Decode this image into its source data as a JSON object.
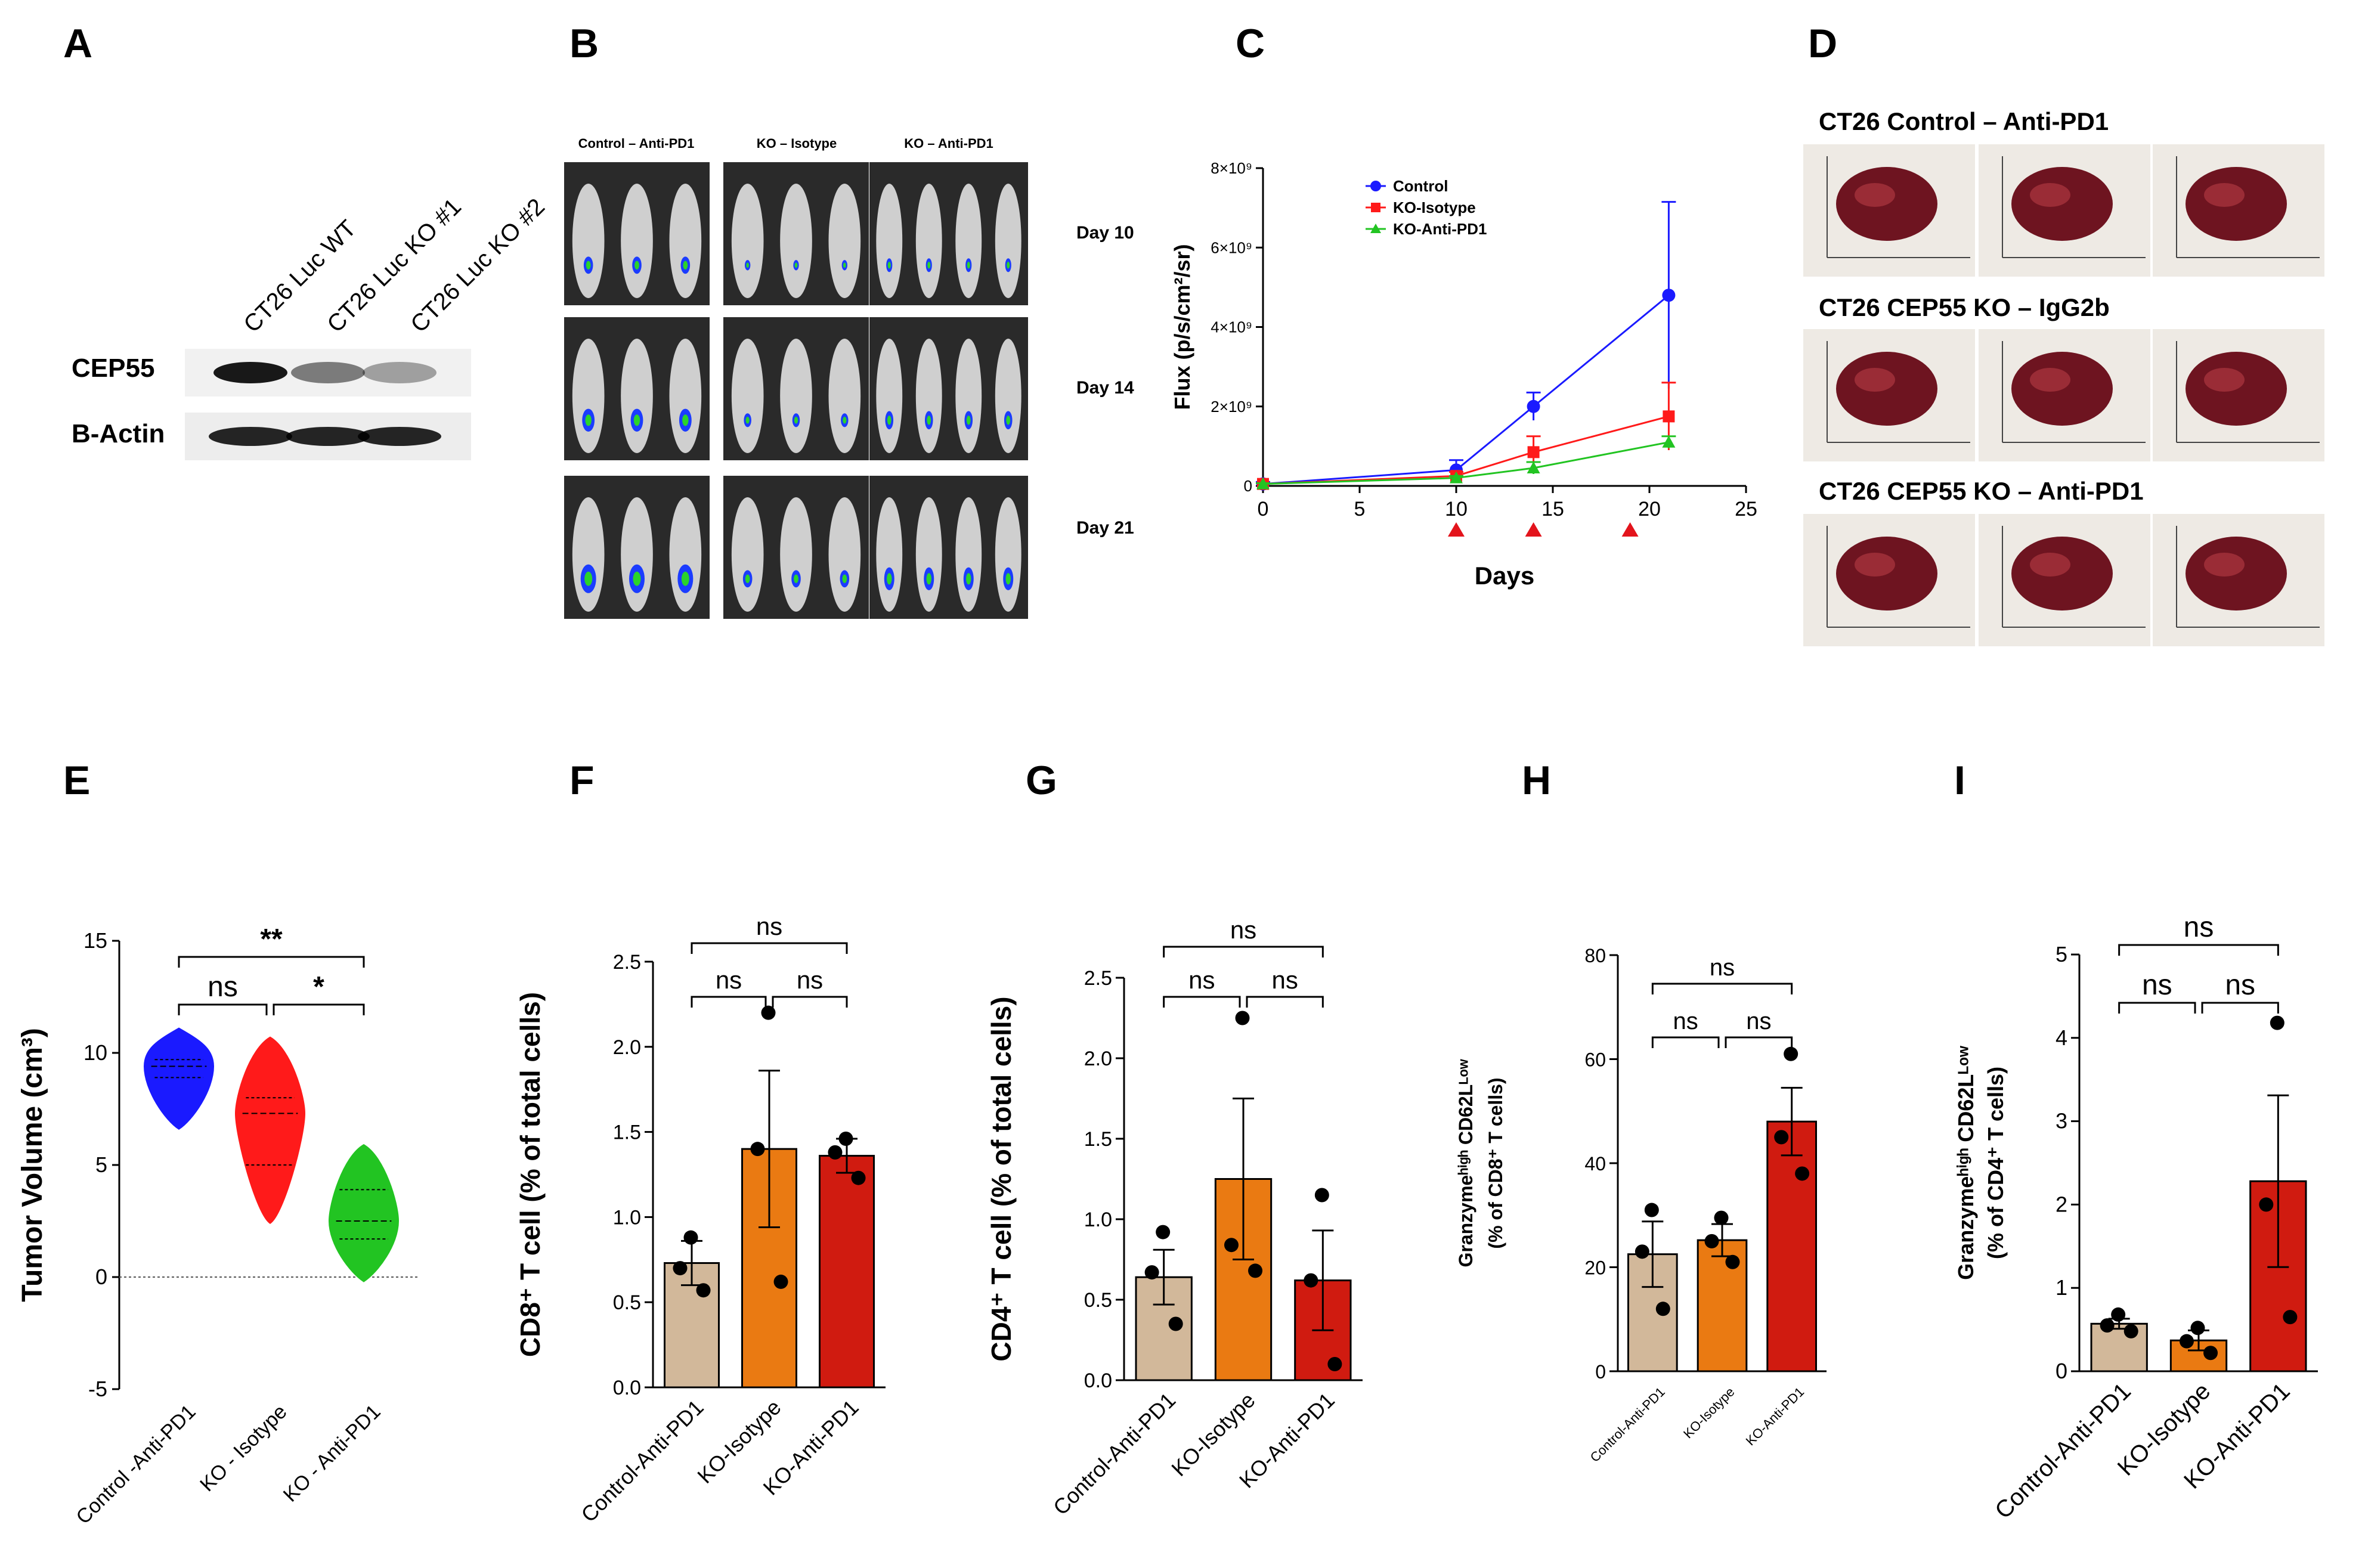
{
  "panels": {
    "A": {
      "letter": "A",
      "lanes": [
        "CT26 Luc WT",
        "CT26 Luc KO #1",
        "CT26 Luc KO #2"
      ],
      "bands": [
        "CEP55",
        "B-Actin"
      ],
      "cep55_relative_intensity": [
        1.0,
        0.45,
        0.25
      ],
      "actin_relative_intensity": [
        1.0,
        1.0,
        1.0
      ]
    },
    "B": {
      "letter": "B",
      "groups": [
        "Control – Anti-PD1",
        "KO – Isotype",
        "KO – Anti-PD1"
      ],
      "days": [
        "Day 10",
        "Day 14",
        "Day 21"
      ]
    },
    "D": {
      "letter": "D",
      "rows": [
        "CT26 Control – Anti-PD1",
        "CT26 CEP55 KO – IgG2b",
        "CT26 CEP55 KO – Anti-PD1"
      ]
    }
  },
  "letters": {
    "C": "C",
    "E": "E",
    "F": "F",
    "G": "G",
    "H": "H",
    "I": "I"
  },
  "colors": {
    "blue": "#1a1aff",
    "red": "#ff1a1a",
    "green": "#22c422",
    "tan": "#d2b89a",
    "orange": "#ea7a12",
    "darkred": "#d01b10",
    "arrow": "#e3141c",
    "black": "#000000"
  },
  "chart_data": [
    {
      "id": "C",
      "type": "line",
      "title": "",
      "xlabel": "Days",
      "ylabel": "Flux (p/s/cm²/sr)",
      "xlim": [
        0,
        25
      ],
      "ylim": [
        0,
        8
      ],
      "xticks": [
        0,
        5,
        10,
        15,
        20,
        25
      ],
      "yticks": [
        0,
        2,
        4,
        6,
        8
      ],
      "ytick_labels": [
        "0",
        "2×10⁹",
        "4×10⁹",
        "6×10⁹",
        "8×10⁹"
      ],
      "treatment_days": [
        10,
        14,
        19
      ],
      "x": [
        0,
        10,
        14,
        21
      ],
      "series": [
        {
          "name": "Control",
          "values": [
            0.05,
            0.4,
            2.0,
            4.8
          ],
          "err": [
            0.05,
            0.25,
            0.35,
            2.35
          ],
          "color": "#1a1aff",
          "marker": "circle"
        },
        {
          "name": "KO-Isotype",
          "values": [
            0.05,
            0.25,
            0.85,
            1.75
          ],
          "err": [
            0.02,
            0.1,
            0.4,
            0.85
          ],
          "color": "#ff1a1a",
          "marker": "square"
        },
        {
          "name": "KO-Anti-PD1",
          "values": [
            0.05,
            0.2,
            0.45,
            1.1
          ],
          "err": [
            0.02,
            0.05,
            0.15,
            0.15
          ],
          "color": "#22c422",
          "marker": "triangle"
        }
      ]
    },
    {
      "id": "E",
      "type": "violin",
      "ylabel": "Tumor Volume (cm³)",
      "ylim": [
        -5,
        15
      ],
      "yticks": [
        -5,
        0,
        5,
        10,
        15
      ],
      "categories": [
        "Control -Anti-PD1",
        "KO - Isotype",
        "KO - Anti-PD1"
      ],
      "groups": [
        {
          "name": "Control -Anti-PD1",
          "min": 6.6,
          "max": 11.1,
          "q1": 8.9,
          "median": 9.4,
          "q3": 9.7,
          "color": "#1a1aff"
        },
        {
          "name": "KO - Isotype",
          "min": 2.4,
          "max": 10.7,
          "q1": 5.0,
          "median": 7.3,
          "q3": 8.0,
          "color": "#ff1a1a"
        },
        {
          "name": "KO - Anti-PD1",
          "min": -0.2,
          "max": 5.9,
          "q1": 1.7,
          "median": 2.5,
          "q3": 3.9,
          "color": "#22c422"
        }
      ],
      "significance": [
        {
          "pair": [
            0,
            2
          ],
          "label": "**"
        },
        {
          "pair": [
            0,
            1
          ],
          "label": "ns"
        },
        {
          "pair": [
            1,
            2
          ],
          "label": "*"
        }
      ]
    },
    {
      "id": "F",
      "type": "bar",
      "ylabel": "CD8⁺ T cell  (% of total cells)",
      "ylim": [
        0,
        2.5
      ],
      "yticks": [
        "0.0",
        "0.5",
        "1.0",
        "1.5",
        "2.0",
        "2.5"
      ],
      "categories": [
        "Control-Anti-PD1",
        "KO-Isotype",
        "KO-Anti-PD1"
      ],
      "values": [
        0.73,
        1.4,
        1.36
      ],
      "err": [
        0.13,
        0.46,
        0.1
      ],
      "points": [
        [
          0.88,
          0.7,
          0.57
        ],
        [
          2.2,
          1.4,
          0.62
        ],
        [
          1.46,
          1.38,
          1.23
        ]
      ],
      "colors": [
        "#d2b89a",
        "#ea7a12",
        "#d01b10"
      ],
      "significance": [
        {
          "pair": [
            0,
            2
          ],
          "label": "ns"
        },
        {
          "pair": [
            0,
            1
          ],
          "label": "ns"
        },
        {
          "pair": [
            1,
            2
          ],
          "label": "ns"
        }
      ]
    },
    {
      "id": "G",
      "type": "bar",
      "ylabel": "CD4⁺ T cell (% of total cells)",
      "ylim": [
        0,
        2.5
      ],
      "yticks": [
        "0.0",
        "0.5",
        "1.0",
        "1.5",
        "2.0",
        "2.5"
      ],
      "categories": [
        "Control-Anti-PD1",
        "KO-Isotype",
        "KO-Anti-PD1"
      ],
      "values": [
        0.64,
        1.25,
        0.62
      ],
      "err": [
        0.17,
        0.5,
        0.31
      ],
      "points": [
        [
          0.92,
          0.67,
          0.35
        ],
        [
          2.25,
          0.84,
          0.68
        ],
        [
          1.15,
          0.62,
          0.1
        ]
      ],
      "colors": [
        "#d2b89a",
        "#ea7a12",
        "#d01b10"
      ],
      "significance": [
        {
          "pair": [
            0,
            2
          ],
          "label": "ns"
        },
        {
          "pair": [
            0,
            1
          ],
          "label": "ns"
        },
        {
          "pair": [
            1,
            2
          ],
          "label": "ns"
        }
      ]
    },
    {
      "id": "H",
      "type": "bar",
      "ylabel_line1": "Granzymeʰⁱᵍʰ CD62Lᴸᵒʷ",
      "ylabel_line2": "(% of CD8⁺ T cells)",
      "ylim": [
        0,
        80
      ],
      "yticks": [
        "0",
        "20",
        "40",
        "60",
        "80"
      ],
      "categories": [
        "Control-Anti-PD1",
        "KO-Isotype",
        "KO-Anti-PD1"
      ],
      "values": [
        22.5,
        25.2,
        48.0
      ],
      "err": [
        6.3,
        3.1,
        6.5
      ],
      "points": [
        [
          31.0,
          23.0,
          12.0
        ],
        [
          29.5,
          25.0,
          21.0
        ],
        [
          61.0,
          45.0,
          38.0
        ]
      ],
      "colors": [
        "#d2b89a",
        "#ea7a12",
        "#d01b10"
      ],
      "significance": [
        {
          "pair": [
            0,
            2
          ],
          "label": "ns"
        },
        {
          "pair": [
            0,
            1
          ],
          "label": "ns"
        },
        {
          "pair": [
            1,
            2
          ],
          "label": "ns"
        }
      ]
    },
    {
      "id": "I",
      "type": "bar",
      "ylabel_line1": "Granzymeʰⁱᵍʰ CD62Lᴸᵒʷ",
      "ylabel_line2": "(% of CD4⁺ T cells)",
      "ylim": [
        0,
        5
      ],
      "yticks": [
        "0",
        "1",
        "2",
        "3",
        "4",
        "5"
      ],
      "categories": [
        "Control-Anti-PD1",
        "KO-Isotype",
        "KO-Anti-PD1"
      ],
      "values": [
        0.57,
        0.37,
        2.28
      ],
      "err": [
        0.06,
        0.12,
        1.03
      ],
      "points": [
        [
          0.68,
          0.55,
          0.48
        ],
        [
          0.52,
          0.36,
          0.22
        ],
        [
          4.18,
          2.0,
          0.65
        ]
      ],
      "colors": [
        "#d2b89a",
        "#ea7a12",
        "#d01b10"
      ],
      "significance": [
        {
          "pair": [
            0,
            2
          ],
          "label": "ns"
        },
        {
          "pair": [
            0,
            1
          ],
          "label": "ns"
        },
        {
          "pair": [
            1,
            2
          ],
          "label": "ns"
        }
      ]
    }
  ]
}
